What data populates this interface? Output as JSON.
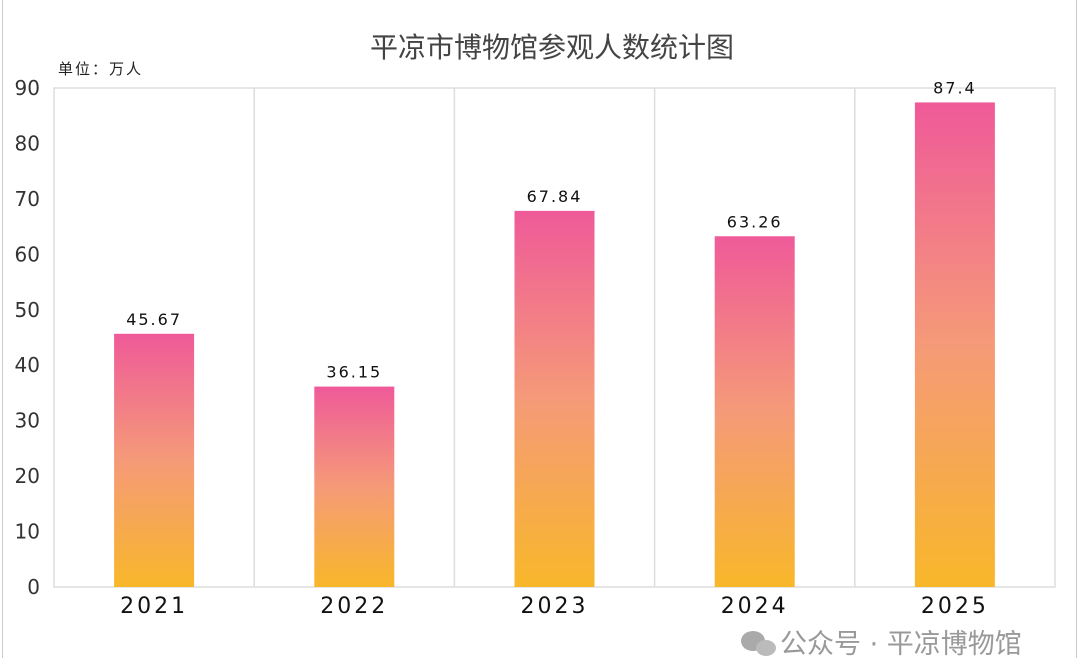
{
  "chart_data": {
    "type": "bar",
    "title": "平凉市博物馆参观人数统计图",
    "unit_label": "单位：万人",
    "categories": [
      "2021",
      "2022",
      "2023",
      "2024",
      "2025"
    ],
    "values": [
      45.67,
      36.15,
      67.84,
      63.26,
      87.4
    ],
    "data_labels": [
      "45.67",
      "36.15",
      "67.84",
      "63.26",
      "87.4"
    ],
    "xlabel": "",
    "ylabel": "",
    "ylim": [
      0,
      90
    ],
    "yticks": [
      0,
      10,
      20,
      30,
      40,
      50,
      60,
      70,
      80,
      90
    ],
    "grid": "vertical category separators",
    "legend": "none",
    "colors": {
      "bar_top": "#ef5a99",
      "bar_mid": "#f59a78",
      "bar_bottom": "#f8b72a",
      "grid": "#dddddd"
    }
  },
  "watermark": "公众号 · 平凉博物馆"
}
